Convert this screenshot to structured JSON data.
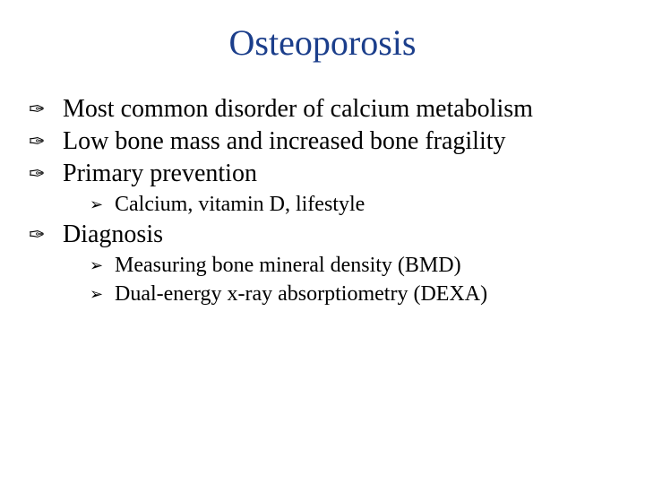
{
  "slide": {
    "title": "Osteoporosis",
    "title_color": "#1b3e8b",
    "title_fontsize": 40,
    "body_fontsize_lvl1": 28,
    "body_fontsize_lvl2": 24,
    "text_color": "#000000",
    "background_color": "#ffffff",
    "bullets": {
      "lvl1_glyph": "✑",
      "lvl2_glyph": "➢"
    },
    "items": [
      {
        "level": 1,
        "text": "Most common disorder of calcium metabolism"
      },
      {
        "level": 1,
        "text": "Low bone mass and increased bone fragility"
      },
      {
        "level": 1,
        "text": "Primary prevention"
      },
      {
        "level": 2,
        "text": "Calcium, vitamin D, lifestyle"
      },
      {
        "level": 1,
        "text": "Diagnosis"
      },
      {
        "level": 2,
        "text": "Measuring bone mineral density (BMD)"
      },
      {
        "level": 2,
        "text": "Dual-energy x-ray absorptiometry (DEXA)"
      }
    ]
  }
}
